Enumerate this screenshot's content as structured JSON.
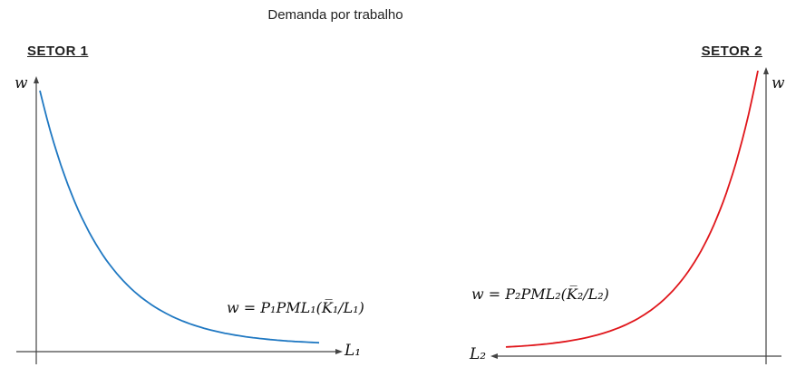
{
  "title": "Demanda por trabalho",
  "sectors": {
    "left": "SETOR 1",
    "right": "SETOR 2"
  },
  "axes": {
    "left_y": "w",
    "right_y": "w",
    "left_x": "L₁",
    "right_x": "L₂"
  },
  "equations": {
    "sector1": "w = P₁PML₁(K̅₁/L₁)",
    "sector2": "w = P₂PML₂(K̅₂/L₂)"
  },
  "colors": {
    "sector1_curve": "#1f78c2",
    "sector2_curve": "#e0161b",
    "axis": "#444444"
  },
  "chart_data": [
    {
      "type": "line",
      "title": "SETOR 1",
      "xlabel": "L₁",
      "ylabel": "w",
      "x_direction": "left-to-right",
      "series": [
        {
          "name": "w = P₁PML₁(K̅₁/L₁)",
          "x": [
            0.01,
            0.1,
            0.2,
            0.4,
            0.6,
            0.8,
            1.0
          ],
          "y": [
            1.0,
            0.6,
            0.38,
            0.17,
            0.08,
            0.03,
            0.01
          ]
        }
      ],
      "grid": false
    },
    {
      "type": "line",
      "title": "SETOR 2",
      "xlabel": "L₂",
      "ylabel": "w",
      "x_direction": "right-to-left",
      "series": [
        {
          "name": "w = P₂PML₂(K̅₂/L₂)",
          "x": [
            0.01,
            0.1,
            0.2,
            0.4,
            0.6,
            0.8,
            1.0
          ],
          "y": [
            1.0,
            0.6,
            0.38,
            0.17,
            0.08,
            0.03,
            0.01
          ]
        }
      ],
      "grid": false
    }
  ]
}
